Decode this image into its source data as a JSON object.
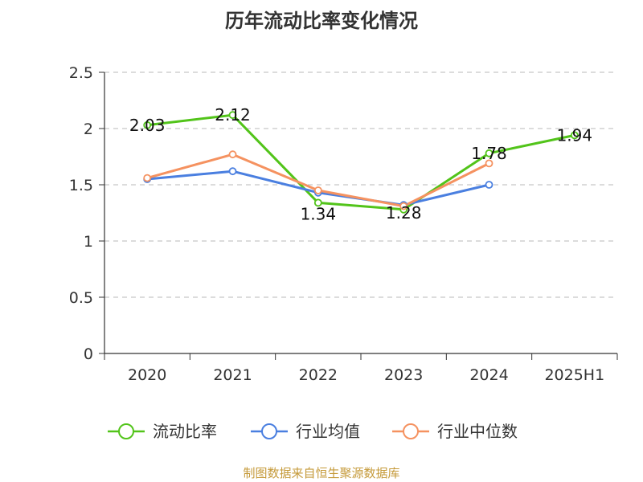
{
  "chart_data": {
    "type": "line",
    "title": "历年流动比率变化情况",
    "categories": [
      "2020",
      "2021",
      "2022",
      "2023",
      "2024",
      "2025H1"
    ],
    "ylim": [
      0,
      2.5
    ],
    "yticks": [
      "0",
      "0.5",
      "1",
      "1.5",
      "2",
      "2.5"
    ],
    "grid": true,
    "legend_position": "bottom",
    "series": [
      {
        "name": "流动比率",
        "color": "#52c41a",
        "values": [
          2.03,
          2.12,
          1.34,
          1.28,
          1.78,
          1.94
        ],
        "labels": [
          "2.03",
          "2.12",
          "1.34",
          "1.28",
          "1.78",
          "1.94"
        ]
      },
      {
        "name": "行业均值",
        "color": "#4a7fe0",
        "values": [
          1.55,
          1.62,
          1.43,
          1.32,
          1.5,
          null
        ]
      },
      {
        "name": "行业中位数",
        "color": "#f59260",
        "values": [
          1.56,
          1.77,
          1.45,
          1.31,
          1.69,
          null
        ]
      }
    ]
  },
  "source": "制图数据来自恒生聚源数据库"
}
